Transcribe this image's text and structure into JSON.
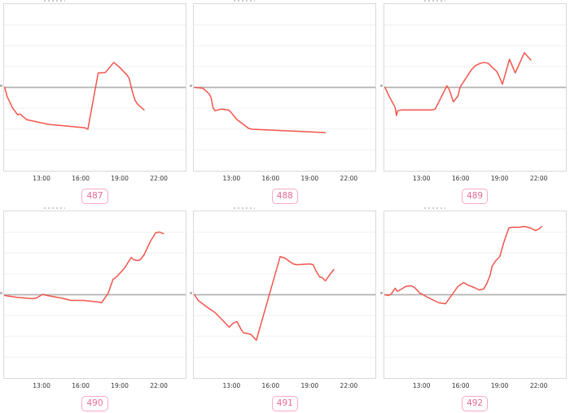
{
  "colors": {
    "line": "#f2554c",
    "reference_line": "#b3b3b3",
    "plot_border": "#d9d9d9",
    "gridline": "#f0f0f0",
    "tick_text": "#333333",
    "badge_border": "#f8a9c2",
    "badge_text": "#e56a92",
    "background": "#ffffff"
  },
  "chart_data": {
    "type": "line",
    "layout": "2 rows x 3 columns of small line panels",
    "grid": "horizontal gridlines only, center reference line darker",
    "x_units": "time of day (hours)",
    "y_axis": {
      "labels_visible": false,
      "units": "percent of panel height relative to gray reference line (0 = reference line, positive = above)"
    },
    "x_axis": {
      "range_hours": [
        10.06,
        24.12
      ],
      "ticks": [
        {
          "label": "13:00",
          "hour": 13
        },
        {
          "label": "16:00",
          "hour": 16
        },
        {
          "label": "19:00",
          "hour": 19
        },
        {
          "label": "22:00",
          "hour": 22
        }
      ]
    },
    "panels": [
      {
        "label": "487",
        "points": [
          [
            10.06,
            0
          ],
          [
            10.3,
            -5.5
          ],
          [
            10.7,
            -12.1
          ],
          [
            11.1,
            -16.4
          ],
          [
            11.3,
            -16
          ],
          [
            11.8,
            -19.3
          ],
          [
            13.5,
            -22.2
          ],
          [
            16.3,
            -24.2
          ],
          [
            16.55,
            -25.1
          ],
          [
            17.35,
            8.7
          ],
          [
            17.9,
            8.9
          ],
          [
            18.55,
            15
          ],
          [
            19,
            12.1
          ],
          [
            19.6,
            7.2
          ],
          [
            19.75,
            5.3
          ],
          [
            19.95,
            -1.4
          ],
          [
            20.2,
            -7.7
          ],
          [
            20.4,
            -10.1
          ],
          [
            20.9,
            -13.5
          ]
        ]
      },
      {
        "label": "488",
        "points": [
          [
            10,
            0
          ],
          [
            10.75,
            -0.5
          ],
          [
            10.9,
            -1.4
          ],
          [
            11.25,
            -3.9
          ],
          [
            11.4,
            -6.3
          ],
          [
            11.55,
            -12.1
          ],
          [
            11.7,
            -14
          ],
          [
            12.2,
            -13
          ],
          [
            12.75,
            -13.5
          ],
          [
            12.95,
            -15
          ],
          [
            13.4,
            -19.3
          ],
          [
            13.9,
            -22.2
          ],
          [
            14.3,
            -24.6
          ],
          [
            14.6,
            -25.1
          ],
          [
            20.25,
            -27.1
          ]
        ]
      },
      {
        "label": "489",
        "points": [
          [
            10,
            0
          ],
          [
            10.4,
            -4.8
          ],
          [
            10.9,
            -12.1
          ],
          [
            11,
            -16.9
          ],
          [
            11.1,
            -14
          ],
          [
            11.4,
            -13.5
          ],
          [
            13.75,
            -13.5
          ],
          [
            14,
            -13
          ],
          [
            14.5,
            -5.3
          ],
          [
            14.9,
            1
          ],
          [
            15.1,
            -1.4
          ],
          [
            15.4,
            -8.7
          ],
          [
            15.75,
            -5.3
          ],
          [
            15.95,
            0.5
          ],
          [
            16.4,
            5.8
          ],
          [
            16.8,
            10.6
          ],
          [
            17.1,
            13
          ],
          [
            17.5,
            14.5
          ],
          [
            17.8,
            15
          ],
          [
            18.1,
            14.5
          ],
          [
            18.4,
            12.1
          ],
          [
            18.75,
            9.7
          ],
          [
            19,
            5.8
          ],
          [
            19.2,
            1.9
          ],
          [
            19.75,
            16.9
          ],
          [
            20.2,
            8.7
          ],
          [
            20.9,
            20.8
          ],
          [
            21.4,
            16.4
          ]
        ]
      },
      {
        "label": "490",
        "points": [
          [
            10.06,
            -0.5
          ],
          [
            11,
            -1.5
          ],
          [
            12.25,
            -2.4
          ],
          [
            12.56,
            -2
          ],
          [
            12.95,
            -0.2
          ],
          [
            13.06,
            0.2
          ],
          [
            13.4,
            -0.5
          ],
          [
            14.5,
            -2
          ],
          [
            15.25,
            -3.4
          ],
          [
            16.2,
            -3.4
          ],
          [
            17.4,
            -4.4
          ],
          [
            17.6,
            -4.9
          ],
          [
            18,
            -0.5
          ],
          [
            18.1,
            0.5
          ],
          [
            18.5,
            9.3
          ],
          [
            18.7,
            10.2
          ],
          [
            19,
            12.7
          ],
          [
            19.4,
            16.1
          ],
          [
            19.9,
            22.4
          ],
          [
            20.1,
            21
          ],
          [
            20.4,
            20.5
          ],
          [
            20.6,
            21
          ],
          [
            20.9,
            23.9
          ],
          [
            21.4,
            32.2
          ],
          [
            21.8,
            37.1
          ],
          [
            22.1,
            37.6
          ],
          [
            22.4,
            36.6
          ]
        ]
      },
      {
        "label": "491",
        "points": [
          [
            10,
            0
          ],
          [
            10.4,
            -3.4
          ],
          [
            11.06,
            -7.3
          ],
          [
            11.7,
            -10.7
          ],
          [
            12.2,
            -14.6
          ],
          [
            12.8,
            -19.5
          ],
          [
            13.1,
            -17.1
          ],
          [
            13.4,
            -16.1
          ],
          [
            13.7,
            -20.5
          ],
          [
            13.9,
            -22.9
          ],
          [
            14.3,
            -23.4
          ],
          [
            14.5,
            -23.9
          ],
          [
            14.9,
            -27.3
          ],
          [
            16.75,
            22.9
          ],
          [
            17.1,
            22
          ],
          [
            17.75,
            18.5
          ],
          [
            18.05,
            18
          ],
          [
            19.05,
            18.5
          ],
          [
            19.3,
            18
          ],
          [
            19.5,
            14.6
          ],
          [
            19.8,
            10.7
          ],
          [
            20,
            10.2
          ],
          [
            20.25,
            8.3
          ],
          [
            20.6,
            12.2
          ],
          [
            20.9,
            15.1
          ]
        ]
      },
      {
        "label": "492",
        "points": [
          [
            10,
            0
          ],
          [
            10.4,
            -0.5
          ],
          [
            10.6,
            0.5
          ],
          [
            10.9,
            3.9
          ],
          [
            11.06,
            2
          ],
          [
            11.4,
            3.4
          ],
          [
            11.7,
            4.9
          ],
          [
            12.1,
            5.4
          ],
          [
            12.4,
            4.4
          ],
          [
            12.8,
            1
          ],
          [
            12.95,
            0.5
          ],
          [
            13.4,
            -1.5
          ],
          [
            13.9,
            -3.4
          ],
          [
            14.3,
            -4.9
          ],
          [
            14.8,
            -5.4
          ],
          [
            15.3,
            0
          ],
          [
            15.75,
            4.9
          ],
          [
            16.1,
            6.8
          ],
          [
            16.2,
            7.3
          ],
          [
            16.5,
            5.9
          ],
          [
            17,
            4.4
          ],
          [
            17.4,
            2.9
          ],
          [
            17.75,
            3.4
          ],
          [
            18,
            6.8
          ],
          [
            18.25,
            11.7
          ],
          [
            18.4,
            17.1
          ],
          [
            18.7,
            20.5
          ],
          [
            19,
            22.9
          ],
          [
            19.3,
            31.2
          ],
          [
            19.7,
            40
          ],
          [
            19.9,
            40.5
          ],
          [
            20.5,
            40.5
          ],
          [
            20.9,
            41
          ],
          [
            21.4,
            40
          ],
          [
            21.75,
            38.5
          ],
          [
            22.05,
            39.5
          ],
          [
            22.25,
            41
          ]
        ]
      }
    ]
  }
}
